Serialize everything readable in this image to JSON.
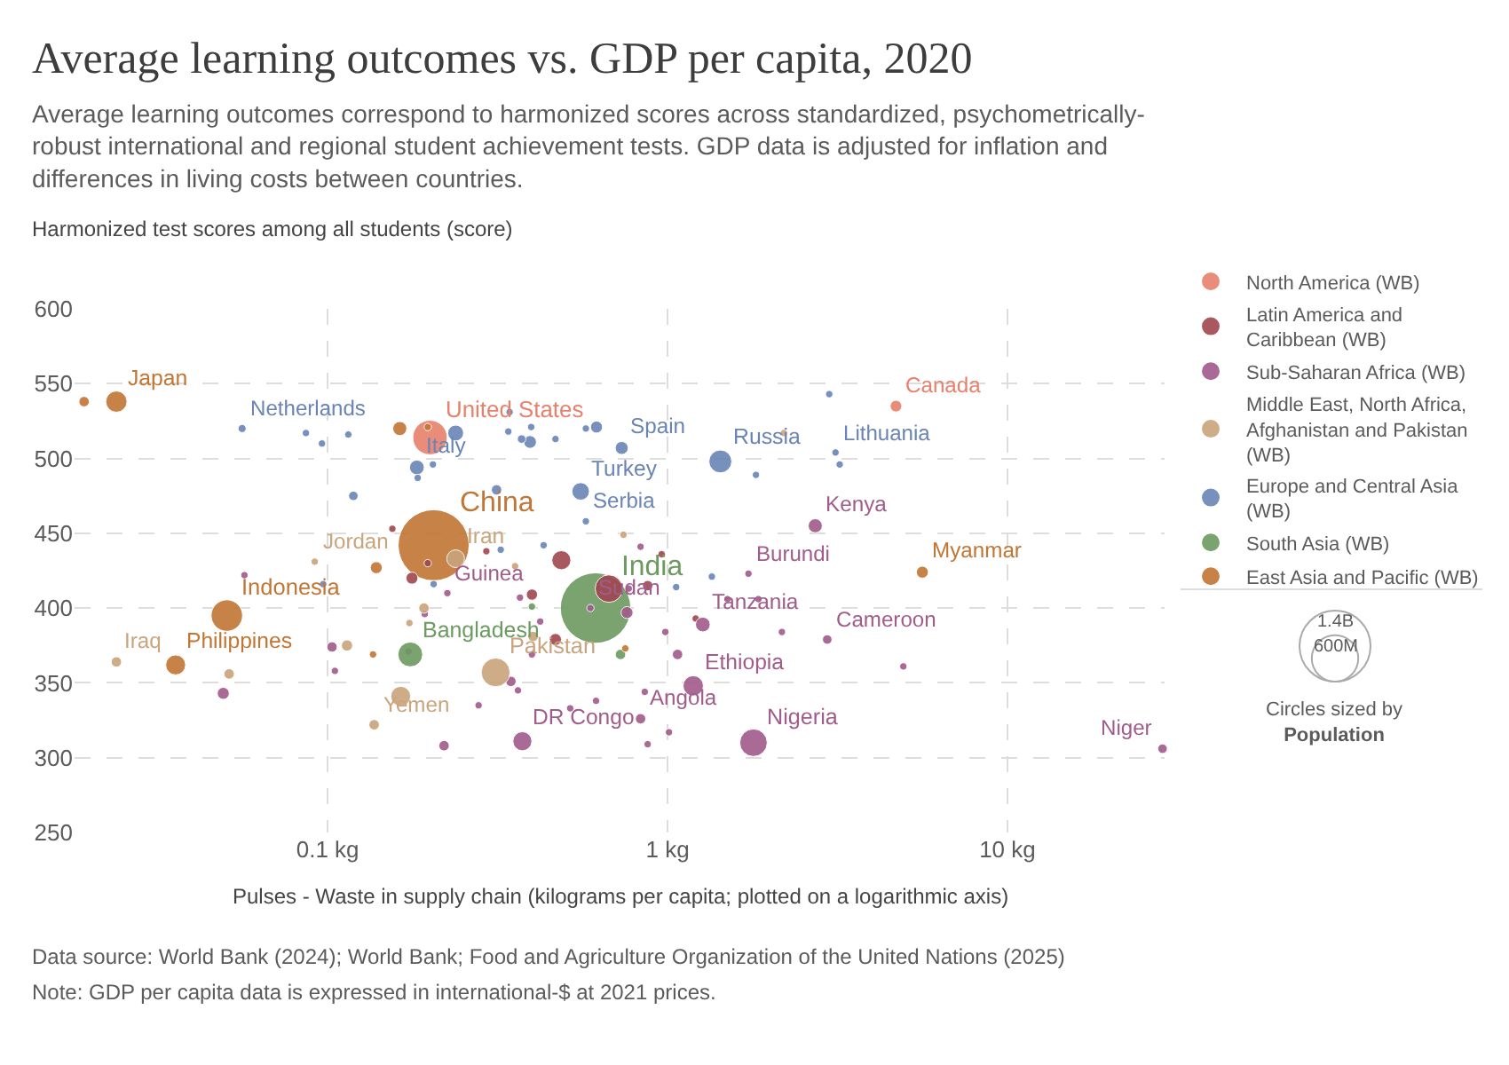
{
  "chart_data": {
    "type": "bubble",
    "title": "Average learning outcomes vs. GDP per capita, 2020",
    "subtitle": "Average learning outcomes correspond to harmonized scores across standardized, psychometrically-robust international and regional student achievement tests. GDP data is adjusted for inflation and differences in living costs between countries.",
    "ylabel": "Harmonized test scores among all students (score)",
    "xlabel": "Pulses - Waste in supply chain (kilograms per capita; plotted on a logarithmic axis)",
    "log": "x",
    "grid": true,
    "legend": "top right",
    "xlim": [
      0.018,
      29
    ],
    "xticks": [
      {
        "value": 0.1,
        "label": "0.1 kg"
      },
      {
        "value": 1,
        "label": "1 kg"
      },
      {
        "value": 10,
        "label": "10 kg"
      }
    ],
    "ylim": [
      250,
      600
    ],
    "yticks": [
      250,
      300,
      350,
      400,
      450,
      500,
      550,
      600
    ],
    "size_legend": [
      {
        "value": 600,
        "label": "600M"
      },
      {
        "value": 1400,
        "label": "1.4B"
      }
    ],
    "series": [
      {
        "name": "North America (WB)",
        "color": "#e8806c",
        "x": [
          0.2,
          4.7
        ],
        "values": [
          514,
          535
        ],
        "sizes": [
          330,
          38
        ]
      },
      {
        "name": "Latin America and Caribbean (WB)",
        "color": "#a0474f",
        "x": [
          0.155,
          0.177,
          0.197,
          0.293,
          0.487,
          0.399,
          0.468,
          0.672,
          0.874,
          0.961,
          1.21
        ],
        "values": [
          453,
          420,
          430,
          438,
          432,
          409,
          379,
          413,
          415,
          436,
          393
        ],
        "sizes": [
          15,
          40,
          15,
          15,
          100,
          35,
          40,
          210,
          30,
          15,
          15
        ]
      },
      {
        "name": "Sub-Saharan Africa (WB)",
        "color": "#a05c8a",
        "x": [
          0.0493,
          0.0569,
          0.193,
          0.173,
          0.103,
          0.105,
          0.225,
          0.346,
          0.363,
          0.278,
          0.22,
          0.374,
          0.517,
          0.399,
          0.422,
          0.368,
          0.593,
          0.616,
          0.76,
          0.769,
          0.833,
          1.73,
          1.5,
          1.85,
          1.27,
          0.985,
          1.07,
          2.17,
          2.95,
          4.94,
          1.19,
          0.833,
          0.857,
          0.874,
          1.01,
          1.79,
          28.6,
          2.72
        ],
        "values": [
          343,
          422,
          396,
          371,
          374,
          358,
          410,
          351,
          345,
          335,
          308,
          311,
          333,
          369,
          391,
          407,
          400,
          338,
          397,
          413,
          441,
          423,
          406,
          406,
          389,
          384,
          369,
          384,
          379,
          361,
          348,
          326,
          344,
          309,
          317,
          310,
          306,
          455
        ],
        "sizes": [
          40,
          15,
          15,
          15,
          30,
          15,
          15,
          30,
          15,
          15,
          30,
          100,
          15,
          15,
          15,
          15,
          15,
          15,
          40,
          15,
          15,
          15,
          15,
          15,
          60,
          15,
          30,
          15,
          25,
          15,
          115,
          30,
          15,
          15,
          15,
          210,
          25,
          55
        ]
      },
      {
        "name": "Middle East, North Africa, Afghanistan and Pakistan (WB)",
        "color": "#c9a47c",
        "x": [
          0.0916,
          0.0239,
          0.0513,
          0.192,
          0.174,
          0.114,
          0.137,
          0.164,
          0.312,
          0.402,
          0.356,
          0.742,
          2.2,
          0.238
        ],
        "values": [
          431,
          364,
          356,
          400,
          390,
          375,
          322,
          341,
          357,
          381,
          428,
          449,
          517,
          433
        ],
        "sizes": [
          15,
          30,
          30,
          30,
          15,
          35,
          30,
          110,
          230,
          30,
          15,
          15,
          15,
          88
        ]
      },
      {
        "name": "Europe and Central Asia (WB)",
        "color": "#6a84b5",
        "x": [
          0.056,
          0.0863,
          0.0962,
          0.115,
          0.238,
          0.183,
          0.184,
          0.204,
          0.119,
          0.314,
          0.34,
          0.394,
          0.372,
          0.468,
          0.343,
          0.397,
          0.575,
          0.618,
          0.555,
          0.575,
          0.432,
          0.323,
          0.097,
          0.205,
          0.733,
          1.43,
          1.82,
          2.99,
          3.12,
          3.21,
          1.06,
          1.35
        ],
        "values": [
          520,
          517,
          510,
          516,
          517,
          494,
          487,
          496,
          475,
          479,
          518,
          511,
          513,
          513,
          531,
          521,
          520,
          521,
          478,
          458,
          442,
          439,
          416,
          416,
          507,
          498,
          489,
          543,
          504,
          496,
          414,
          421
        ],
        "sizes": [
          18,
          15,
          15,
          15,
          70,
          60,
          15,
          15,
          25,
          30,
          15,
          45,
          20,
          15,
          15,
          15,
          15,
          40,
          85,
          15,
          15,
          15,
          15,
          15,
          47,
          145,
          15,
          15,
          15,
          15,
          15,
          15
        ]
      },
      {
        "name": "South Asia (WB)",
        "color": "#6c9a60",
        "x": [
          0.614,
          0.175,
          0.399,
          0.727
        ],
        "values": [
          400,
          369,
          401,
          369
        ],
        "sizes": [
          1380,
          170,
          15,
          30
        ]
      },
      {
        "name": "East Asia and Pacific (WB)",
        "color": "#c27634",
        "x": [
          0.0192,
          0.0239,
          0.163,
          0.197,
          0.205,
          0.139,
          0.0505,
          0.0357,
          0.136,
          0.751,
          5.62
        ],
        "values": [
          538,
          538,
          520,
          521,
          442,
          427,
          395,
          362,
          369,
          373,
          424
        ],
        "sizes": [
          30,
          125,
          55,
          15,
          1400,
          40,
          275,
          110,
          15,
          15,
          40
        ]
      }
    ],
    "annotations": [
      {
        "text": "Japan",
        "x": 0.0239,
        "y": 538
      },
      {
        "text": "Netherlands",
        "x": 0.056,
        "y": 520
      },
      {
        "text": "United States",
        "x": 0.2,
        "y": 514
      },
      {
        "text": "Italy",
        "x": 0.183,
        "y": 494
      },
      {
        "text": "Canada",
        "x": 4.7,
        "y": 535
      },
      {
        "text": "Spain",
        "x": 0.733,
        "y": 507
      },
      {
        "text": "Russia",
        "x": 1.43,
        "y": 498
      },
      {
        "text": "Lithuania",
        "x": 3.12,
        "y": 504
      },
      {
        "text": "Turkey",
        "x": 0.555,
        "y": 478
      },
      {
        "text": "Serbia",
        "x": 0.575,
        "y": 458
      },
      {
        "text": "Kenya",
        "x": 2.72,
        "y": 455
      },
      {
        "text": "China",
        "x": 0.205,
        "y": 442
      },
      {
        "text": "Iran",
        "x": 0.238,
        "y": 433
      },
      {
        "text": "Jordan",
        "x": 0.0916,
        "y": 431
      },
      {
        "text": "Guinea",
        "x": 0.225,
        "y": 410
      },
      {
        "text": "India",
        "x": 0.614,
        "y": 400
      },
      {
        "text": "Burundi",
        "x": 1.73,
        "y": 423
      },
      {
        "text": "Myanmar",
        "x": 5.62,
        "y": 424
      },
      {
        "text": "Indonesia",
        "x": 0.0505,
        "y": 395
      },
      {
        "text": "Sudan",
        "x": 0.593,
        "y": 400
      },
      {
        "text": "Tanzania",
        "x": 1.27,
        "y": 389
      },
      {
        "text": "Bangladesh",
        "x": 0.175,
        "y": 369
      },
      {
        "text": "Cameroon",
        "x": 2.95,
        "y": 379
      },
      {
        "text": "Iraq",
        "x": 0.0239,
        "y": 364
      },
      {
        "text": "Philippines",
        "x": 0.0357,
        "y": 362
      },
      {
        "text": "Pakistan",
        "x": 0.312,
        "y": 357
      },
      {
        "text": "Ethiopia",
        "x": 1.19,
        "y": 348
      },
      {
        "text": "Yemen",
        "x": 0.137,
        "y": 322
      },
      {
        "text": "Angola",
        "x": 0.833,
        "y": 326
      },
      {
        "text": "DR Congo",
        "x": 0.374,
        "y": 311
      },
      {
        "text": "Nigeria",
        "x": 1.79,
        "y": 310
      },
      {
        "text": "Niger",
        "x": 28.6,
        "y": 306
      },
      "Circles sized by Population",
      "Data source: World Bank (2024); World Bank; Food and Agriculture Organization of the United Nations (2025)",
      "Note: GDP per capita data is expressed in international-$ at 2021 prices."
    ]
  }
}
